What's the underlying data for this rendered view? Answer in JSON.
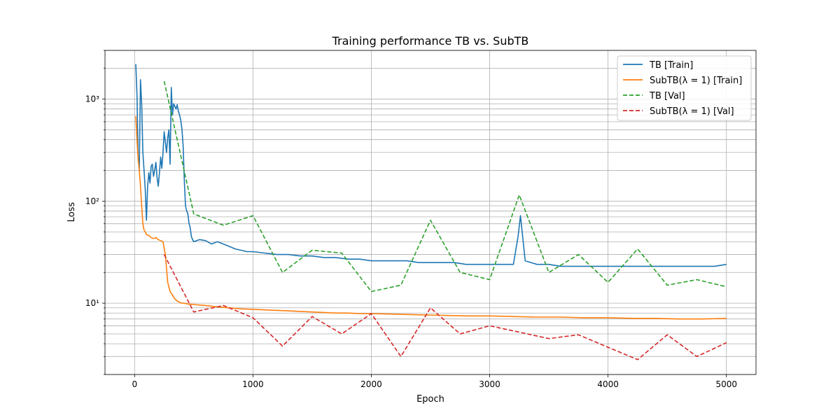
{
  "chart_data": {
    "type": "line",
    "title": "Training performance TB vs. SubTB",
    "xlabel": "Epoch",
    "ylabel": "Loss",
    "xlim": [
      -250,
      5250
    ],
    "ylim": [
      2,
      3000
    ],
    "yscale": "log",
    "grid": true,
    "legend_position": "upper right",
    "x_ticks": [
      0,
      1000,
      2000,
      3000,
      4000,
      5000
    ],
    "y_ticks": [
      {
        "value": 10,
        "label": "10¹"
      },
      {
        "value": 100,
        "label": "10²"
      },
      {
        "value": 1000,
        "label": "10³"
      }
    ],
    "series": [
      {
        "name": "TB [Train]",
        "color": "#1f77b4",
        "style": "solid",
        "x": [
          10,
          20,
          30,
          40,
          50,
          60,
          70,
          80,
          90,
          100,
          110,
          120,
          130,
          140,
          150,
          160,
          170,
          180,
          190,
          200,
          210,
          220,
          230,
          240,
          250,
          260,
          270,
          280,
          290,
          300,
          310,
          320,
          330,
          340,
          350,
          360,
          370,
          380,
          390,
          400,
          410,
          420,
          430,
          440,
          450,
          460,
          470,
          480,
          490,
          500,
          550,
          600,
          650,
          700,
          750,
          800,
          850,
          900,
          950,
          1000,
          1100,
          1200,
          1300,
          1400,
          1500,
          1600,
          1700,
          1800,
          1900,
          2000,
          2100,
          2200,
          2300,
          2400,
          2500,
          2600,
          2700,
          2800,
          2900,
          3000,
          3100,
          3200,
          3240,
          3260,
          3300,
          3400,
          3500,
          3600,
          3700,
          3800,
          3900,
          4000,
          4100,
          4200,
          4300,
          4400,
          4500,
          4600,
          4700,
          4800,
          4900,
          5000
        ],
        "y": [
          2200,
          1100,
          280,
          200,
          1550,
          900,
          300,
          200,
          130,
          65,
          140,
          190,
          150,
          220,
          230,
          175,
          200,
          240,
          170,
          140,
          190,
          270,
          210,
          300,
          480,
          380,
          300,
          420,
          500,
          230,
          1300,
          700,
          900,
          850,
          800,
          880,
          760,
          700,
          620,
          510,
          350,
          160,
          90,
          80,
          75,
          60,
          55,
          45,
          42,
          40,
          42,
          41,
          38,
          40,
          38,
          36,
          34,
          33,
          32,
          32,
          31,
          30,
          30,
          29,
          29,
          28,
          28,
          27,
          27,
          26,
          26,
          26,
          26,
          25,
          25,
          25,
          25,
          24,
          24,
          24,
          24,
          24,
          45,
          72,
          26,
          24,
          24,
          23,
          23,
          23,
          23,
          23,
          23,
          23,
          23,
          23,
          23,
          23,
          23,
          23,
          23,
          24
        ]
      },
      {
        "name": "SubTB(λ = 1) [Train]",
        "color": "#ff7f0e",
        "style": "solid",
        "x": [
          10,
          20,
          30,
          40,
          50,
          60,
          70,
          80,
          90,
          100,
          120,
          140,
          160,
          180,
          200,
          220,
          240,
          260,
          280,
          300,
          320,
          340,
          360,
          380,
          400,
          420,
          450,
          500,
          600,
          700,
          800,
          900,
          1000,
          1100,
          1200,
          1300,
          1400,
          1500,
          1600,
          1700,
          1800,
          1900,
          2000,
          2200,
          2400,
          2600,
          2800,
          3000,
          3200,
          3400,
          3600,
          3800,
          4000,
          4200,
          4400,
          4600,
          4800,
          5000
        ],
        "y": [
          680,
          400,
          260,
          200,
          140,
          90,
          60,
          52,
          50,
          47,
          46,
          44,
          43,
          44,
          42,
          41,
          40,
          30,
          16,
          13,
          12,
          11,
          10.5,
          10.2,
          10,
          10,
          9.8,
          9.7,
          9.5,
          9.2,
          9,
          8.8,
          8.7,
          8.6,
          8.5,
          8.4,
          8.3,
          8.2,
          8.1,
          8,
          8,
          7.9,
          7.9,
          7.8,
          7.7,
          7.6,
          7.5,
          7.5,
          7.4,
          7.3,
          7.3,
          7.2,
          7.2,
          7.1,
          7.1,
          7,
          7,
          7.1
        ]
      },
      {
        "name": "TB [Val]",
        "color": "#2ca02c",
        "style": "dashed",
        "x": [
          250,
          500,
          750,
          1000,
          1250,
          1500,
          1750,
          2000,
          2250,
          2500,
          2750,
          3000,
          3250,
          3500,
          3750,
          4000,
          4250,
          4500,
          4750,
          5000
        ],
        "y": [
          1500,
          75,
          58,
          72,
          20,
          33,
          31,
          13,
          15,
          65,
          20,
          17,
          115,
          20,
          30,
          16,
          34,
          15,
          17,
          14.5
        ]
      },
      {
        "name": "SubTB(λ = 1) [Val]",
        "color": "#d62728",
        "style": "dashed",
        "x": [
          250,
          500,
          750,
          1000,
          1250,
          1500,
          1750,
          2000,
          2250,
          2500,
          2750,
          3000,
          3250,
          3500,
          3750,
          4000,
          4250,
          4500,
          4750,
          5000
        ],
        "y": [
          30,
          8.2,
          9.5,
          7.2,
          3.8,
          7.4,
          5,
          7.9,
          3,
          9,
          5,
          6,
          5.2,
          4.5,
          4.9,
          3.7,
          2.8,
          4.9,
          3,
          4.1
        ]
      }
    ]
  }
}
